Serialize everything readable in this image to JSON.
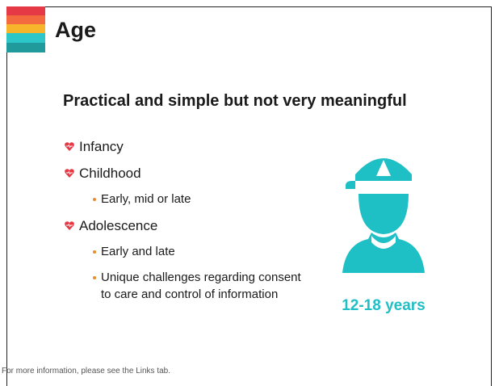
{
  "slide": {
    "title": "Age",
    "subtitle": "Practical and simple but not very meaningful",
    "bullets": [
      {
        "text": "Infancy",
        "subitems": []
      },
      {
        "text": "Childhood",
        "subitems": [
          "Early, mid or late"
        ]
      },
      {
        "text": "Adolescence",
        "subitems": [
          "Early and late",
          "Unique challenges regarding consent to care and control of information"
        ]
      }
    ],
    "caption": "12-18 years",
    "footer": "For more information, please see the Links tab."
  }
}
